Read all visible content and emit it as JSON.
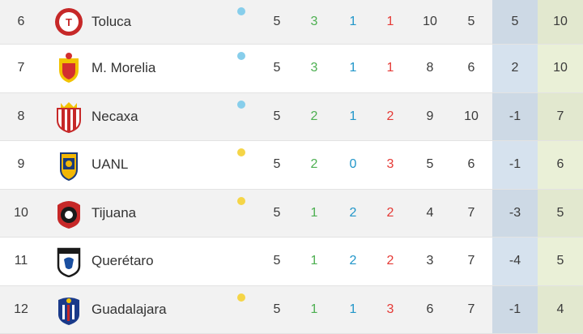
{
  "colors": {
    "dot_blue": "#87ceeb",
    "dot_yellow": "#f5d547",
    "win": "#4caf50",
    "draw": "#2196c9",
    "loss": "#e53935"
  },
  "rows": [
    {
      "pos": "6",
      "team": "Toluca",
      "logo": "toluca-crest-icon",
      "dot": "blue",
      "pj": "5",
      "g": "3",
      "e": "1",
      "p": "1",
      "gf": "10",
      "gc": "5",
      "dif": "5",
      "pts": "10"
    },
    {
      "pos": "7",
      "team": "M. Morelia",
      "logo": "morelia-crest-icon",
      "dot": "blue",
      "pj": "5",
      "g": "3",
      "e": "1",
      "p": "1",
      "gf": "8",
      "gc": "6",
      "dif": "2",
      "pts": "10"
    },
    {
      "pos": "8",
      "team": "Necaxa",
      "logo": "necaxa-crest-icon",
      "dot": "blue",
      "pj": "5",
      "g": "2",
      "e": "1",
      "p": "2",
      "gf": "9",
      "gc": "10",
      "dif": "-1",
      "pts": "7"
    },
    {
      "pos": "9",
      "team": "UANL",
      "logo": "uanl-crest-icon",
      "dot": "yellow",
      "pj": "5",
      "g": "2",
      "e": "0",
      "p": "3",
      "gf": "5",
      "gc": "6",
      "dif": "-1",
      "pts": "6"
    },
    {
      "pos": "10",
      "team": "Tijuana",
      "logo": "tijuana-crest-icon",
      "dot": "yellow",
      "pj": "5",
      "g": "1",
      "e": "2",
      "p": "2",
      "gf": "4",
      "gc": "7",
      "dif": "-3",
      "pts": "5"
    },
    {
      "pos": "11",
      "team": "Querétaro",
      "logo": "queretaro-crest-icon",
      "dot": "none",
      "pj": "5",
      "g": "1",
      "e": "2",
      "p": "2",
      "gf": "3",
      "gc": "7",
      "dif": "-4",
      "pts": "5"
    },
    {
      "pos": "12",
      "team": "Guadalajara",
      "logo": "guadalajara-crest-icon",
      "dot": "yellow",
      "pj": "5",
      "g": "1",
      "e": "1",
      "p": "3",
      "gf": "6",
      "gc": "7",
      "dif": "-1",
      "pts": "4"
    }
  ]
}
